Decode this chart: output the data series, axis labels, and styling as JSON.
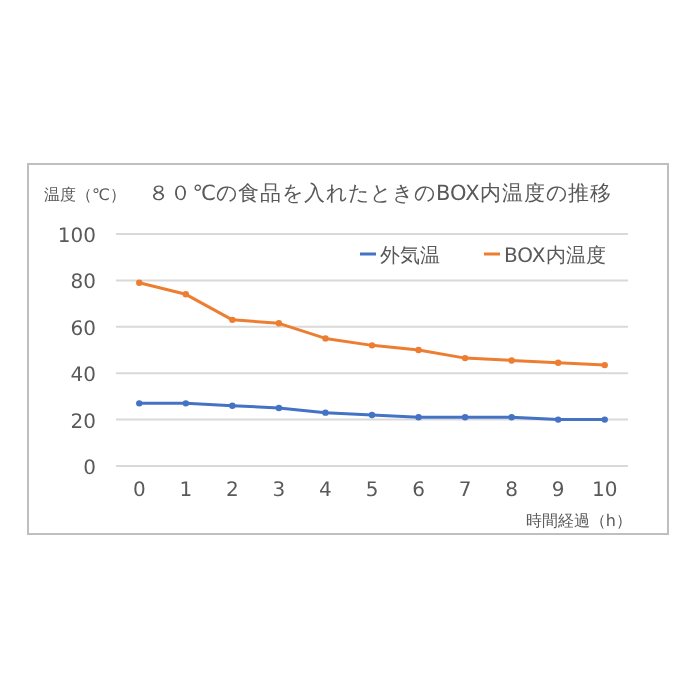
{
  "chart_data": {
    "type": "line",
    "title": "８０℃の食品を入れたときのBOX内温度の推移",
    "ylabel": "温度（℃）",
    "xlabel": "時間経過（h）",
    "categories": [
      "0",
      "1",
      "2",
      "3",
      "4",
      "5",
      "6",
      "7",
      "8",
      "9",
      "10"
    ],
    "series": [
      {
        "name": "外気温",
        "color": "#4472c4",
        "values": [
          27,
          27,
          26,
          25,
          23,
          22,
          21,
          21,
          21,
          20,
          20
        ]
      },
      {
        "name": "BOX内温度",
        "color": "#ed7d31",
        "values": [
          79,
          74,
          63,
          61.5,
          55,
          52,
          50,
          46.5,
          45.5,
          44.5,
          43.5
        ]
      }
    ],
    "ylim": [
      0,
      100
    ],
    "yticks": [
      0,
      20,
      40,
      60,
      80,
      100
    ],
    "grid": "y",
    "legend": "top right",
    "marker": "circle",
    "line_style": "solid"
  }
}
